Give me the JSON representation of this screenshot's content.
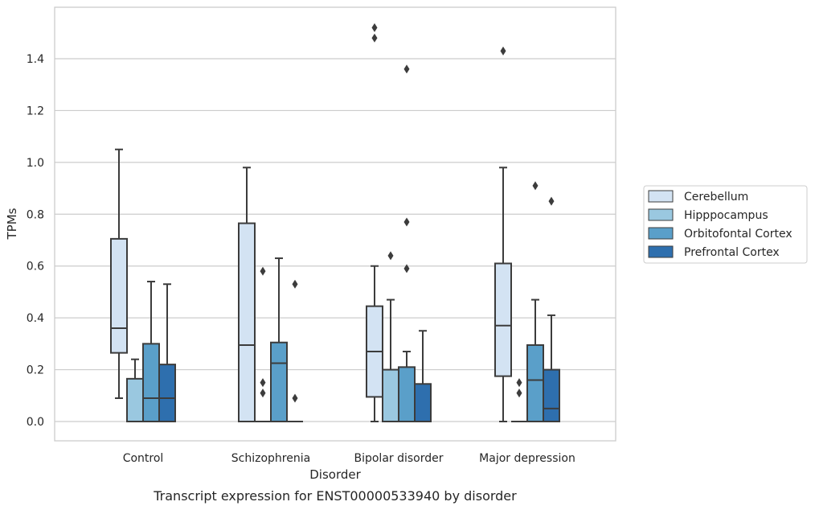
{
  "chart_data": {
    "type": "box",
    "title": "",
    "caption": "Transcript expression for ENST00000533940 by disorder",
    "xlabel": "Disorder",
    "ylabel": "TPMs",
    "ylim": [
      -0.07,
      1.6
    ],
    "yticks": [
      0.0,
      0.2,
      0.4,
      0.6,
      0.8,
      1.0,
      1.2,
      1.4
    ],
    "ytick_labels": [
      "0.0",
      "0.2",
      "0.4",
      "0.6",
      "0.8",
      "1.0",
      "1.2",
      "1.4"
    ],
    "grid": "horizontal",
    "legend_position": "right",
    "categories": [
      "Control",
      "Schizophrenia",
      "Bipolar disorder",
      "Major depression"
    ],
    "series": [
      {
        "name": "Cerebellum",
        "color": "#d3e3f3",
        "boxes": [
          {
            "min": 0.09,
            "q1": 0.265,
            "median": 0.36,
            "q3": 0.705,
            "max": 1.05,
            "outliers": []
          },
          {
            "min": 0.0,
            "q1": 0.0,
            "median": 0.295,
            "q3": 0.765,
            "max": 0.98,
            "outliers": []
          },
          {
            "min": 0.0,
            "q1": 0.095,
            "median": 0.27,
            "q3": 0.445,
            "max": 0.6,
            "outliers": [
              1.48,
              1.52
            ]
          },
          {
            "min": 0.0,
            "q1": 0.175,
            "median": 0.37,
            "q3": 0.61,
            "max": 0.98,
            "outliers": [
              1.43
            ]
          }
        ]
      },
      {
        "name": "Hipppocampus",
        "color": "#9ac8e0",
        "boxes": [
          {
            "min": 0.0,
            "q1": 0.0,
            "median": 0.0,
            "q3": 0.165,
            "max": 0.24,
            "outliers": []
          },
          {
            "min": 0.0,
            "q1": 0.0,
            "median": 0.0,
            "q3": 0.0,
            "max": 0.0,
            "outliers": [
              0.11,
              0.15,
              0.58
            ]
          },
          {
            "min": 0.0,
            "q1": 0.0,
            "median": 0.0,
            "q3": 0.2,
            "max": 0.47,
            "outliers": [
              0.64
            ]
          },
          {
            "min": 0.0,
            "q1": 0.0,
            "median": 0.0,
            "q3": 0.0,
            "max": 0.0,
            "outliers": [
              0.11,
              0.15
            ]
          }
        ]
      },
      {
        "name": "Orbitofontal Cortex",
        "color": "#5a9fc9",
        "boxes": [
          {
            "min": 0.0,
            "q1": 0.0,
            "median": 0.09,
            "q3": 0.3,
            "max": 0.54,
            "outliers": []
          },
          {
            "min": 0.0,
            "q1": 0.0,
            "median": 0.225,
            "q3": 0.305,
            "max": 0.63,
            "outliers": []
          },
          {
            "min": 0.0,
            "q1": 0.0,
            "median": 0.0,
            "q3": 0.21,
            "max": 0.27,
            "outliers": [
              0.59,
              0.77,
              1.36
            ]
          },
          {
            "min": 0.0,
            "q1": 0.0,
            "median": 0.16,
            "q3": 0.295,
            "max": 0.47,
            "outliers": [
              0.91
            ]
          }
        ]
      },
      {
        "name": "Prefrontal Cortex",
        "color": "#2e6fae",
        "boxes": [
          {
            "min": 0.0,
            "q1": 0.0,
            "median": 0.09,
            "q3": 0.22,
            "max": 0.53,
            "outliers": []
          },
          {
            "min": 0.0,
            "q1": 0.0,
            "median": 0.0,
            "q3": 0.0,
            "max": 0.0,
            "outliers": [
              0.09,
              0.53
            ]
          },
          {
            "min": 0.0,
            "q1": 0.0,
            "median": 0.0,
            "q3": 0.145,
            "max": 0.35,
            "outliers": []
          },
          {
            "min": 0.0,
            "q1": 0.0,
            "median": 0.05,
            "q3": 0.2,
            "max": 0.41,
            "outliers": [
              0.85
            ]
          }
        ]
      }
    ]
  }
}
